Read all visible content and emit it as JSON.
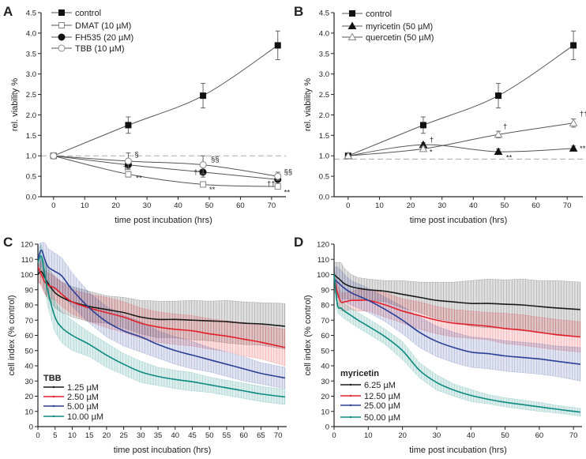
{
  "chart_data": [
    {
      "panel_label": "A",
      "type": "line",
      "xlabel": "time post incubation (hrs)",
      "ylabel": "rel. viability %",
      "xlim": [
        -4,
        74.6
      ],
      "ylim": [
        0,
        4.5
      ],
      "xticks": [
        0,
        10,
        20,
        30,
        40,
        50,
        60,
        70
      ],
      "yticks": [
        "0.0",
        "0.5",
        "1.0",
        "1.5",
        "2.0",
        "2.5",
        "3.0",
        "3.5",
        "4.0",
        "4.5"
      ],
      "grid": false,
      "legend_placement": "top-left",
      "reference_line": {
        "y": 1.0,
        "style": "dashed",
        "color": "#aaaaaa"
      },
      "series": [
        {
          "name": "control",
          "marker": "square-filled",
          "color": "#222222",
          "x": [
            0,
            24,
            48,
            72
          ],
          "y": [
            1.0,
            1.75,
            2.47,
            3.7
          ],
          "err": [
            0,
            0.2,
            0.3,
            0.35
          ]
        },
        {
          "name": "DMAT (10 µM)",
          "marker": "square-open",
          "color": "#888888",
          "x": [
            0,
            24,
            48,
            72
          ],
          "y": [
            1.0,
            0.55,
            0.3,
            0.25
          ],
          "err": [
            0,
            0.07,
            0.05,
            0.03
          ]
        },
        {
          "name": "FH535 (20 µM)",
          "marker": "circle-filled",
          "color": "#222222",
          "x": [
            0,
            24,
            48,
            72
          ],
          "y": [
            1.0,
            0.78,
            0.6,
            0.42
          ],
          "err": [
            0,
            0.1,
            0.12,
            0.05
          ]
        },
        {
          "name": "TBB (10 µM)",
          "marker": "circle-open",
          "color": "#888888",
          "x": [
            0,
            24,
            48,
            72
          ],
          "y": [
            1.0,
            0.87,
            0.78,
            0.5
          ],
          "err": [
            0,
            0.2,
            0.22,
            0.1
          ]
        }
      ],
      "annotations": [
        {
          "text": "§",
          "x": 26,
          "y": 0.98
        },
        {
          "text": "†",
          "x": 22.3,
          "y": 0.66
        },
        {
          "text": "**",
          "x": 26.5,
          "y": 0.4
        },
        {
          "text": "§§",
          "x": 50.5,
          "y": 0.86
        },
        {
          "text": "††",
          "x": 45,
          "y": 0.54
        },
        {
          "text": "**",
          "x": 50,
          "y": 0.12
        },
        {
          "text": "§§",
          "x": 74,
          "y": 0.55
        },
        {
          "text": "††",
          "x": 68.5,
          "y": 0.26
        },
        {
          "text": "**",
          "x": 74,
          "y": 0.05
        }
      ]
    },
    {
      "panel_label": "B",
      "type": "line",
      "xlabel": "time post incubation (hrs)",
      "ylabel": "rel. viability %",
      "xlim": [
        -4.5,
        75
      ],
      "ylim": [
        0,
        4.5
      ],
      "xticks": [
        0,
        10,
        20,
        30,
        40,
        50,
        60,
        70
      ],
      "yticks": [
        "0.0",
        "0.5",
        "1.0",
        "1.5",
        "2.0",
        "2.5",
        "3.0",
        "3.5",
        "4.0",
        "4.5"
      ],
      "grid": false,
      "legend_placement": "top-left",
      "reference_line": {
        "y": 0.92,
        "style": "dashed",
        "color": "#aaaaaa"
      },
      "series": [
        {
          "name": "control",
          "marker": "square-filled",
          "color": "#222222",
          "x": [
            0,
            24,
            48,
            72
          ],
          "y": [
            1.0,
            1.75,
            2.47,
            3.7
          ],
          "err": [
            0,
            0.2,
            0.3,
            0.35
          ]
        },
        {
          "name": "myricetin (50 µM)",
          "marker": "triangle-filled",
          "color": "#222222",
          "x": [
            0,
            24,
            48,
            72
          ],
          "y": [
            1.0,
            1.27,
            1.1,
            1.18
          ],
          "err": [
            0,
            0.05,
            0.07,
            0.06
          ]
        },
        {
          "name": "quercetin (50 µM)",
          "marker": "triangle-open",
          "color": "#888888",
          "x": [
            0,
            24,
            48,
            72
          ],
          "y": [
            1.0,
            1.17,
            1.52,
            1.8
          ],
          "err": [
            0,
            0.06,
            0.08,
            0.1
          ]
        }
      ],
      "annotations": [
        {
          "text": "†",
          "x": 26,
          "y": 1.33
        },
        {
          "text": "*",
          "x": 26,
          "y": 1.03
        },
        {
          "text": "†",
          "x": 49.5,
          "y": 1.66
        },
        {
          "text": "**",
          "x": 50.5,
          "y": 0.9
        },
        {
          "text": "††",
          "x": 74,
          "y": 1.97
        },
        {
          "text": "**",
          "x": 74,
          "y": 1.12
        }
      ]
    },
    {
      "panel_label": "C",
      "type": "line",
      "xlabel": "time post incubation (hrs)",
      "ylabel": "cell index (% control)",
      "xlim": [
        0,
        72.5
      ],
      "ylim": [
        0,
        120
      ],
      "xticks": [
        0,
        5,
        10,
        15,
        20,
        25,
        30,
        35,
        40,
        45,
        50,
        55,
        60,
        65,
        70
      ],
      "yticks": [
        0,
        10,
        20,
        30,
        40,
        50,
        60,
        70,
        80,
        90,
        100,
        110,
        120
      ],
      "grid": false,
      "legend_placement": "bottom-left",
      "legend_title": "TBB",
      "x": [
        0,
        1,
        2,
        3,
        5,
        7,
        10,
        15,
        20,
        25,
        30,
        35,
        40,
        45,
        50,
        55,
        60,
        65,
        72
      ],
      "series": [
        {
          "name": "1.25 µM",
          "color": "#1a1a1a",
          "y": [
            100,
            102,
            98,
            94,
            88,
            85,
            82,
            79,
            77,
            75,
            72,
            70.5,
            70.5,
            70,
            69.5,
            69,
            68,
            67.5,
            66
          ],
          "sd": [
            5,
            8,
            10,
            10,
            10,
            10,
            10,
            10,
            9,
            10,
            11,
            12,
            12,
            13,
            13,
            14,
            14,
            14,
            15
          ]
        },
        {
          "name": "2.50 µM",
          "color": "#e3202a",
          "y": [
            105,
            100,
            95,
            93,
            91,
            87,
            82,
            78,
            75,
            72,
            68,
            65.5,
            64,
            63,
            61,
            59.5,
            57.5,
            55.5,
            52
          ],
          "sd": [
            8,
            8,
            8,
            8,
            8,
            8,
            8,
            9,
            10,
            10,
            10,
            10,
            10,
            10,
            10,
            10,
            11,
            11,
            12
          ]
        },
        {
          "name": "5.00 µM",
          "color": "#2b3f96",
          "y": [
            110,
            116,
            110,
            105,
            102,
            99,
            90,
            78,
            69,
            63,
            59,
            54,
            50,
            47,
            44,
            41,
            38,
            35,
            32
          ],
          "sd": [
            10,
            10,
            11,
            12,
            12,
            12,
            11,
            10,
            10,
            10,
            10,
            9,
            9,
            9,
            8,
            8,
            8,
            7,
            7
          ]
        },
        {
          "name": "10.00 µM",
          "color": "#0b8a80",
          "y": [
            108,
            112,
            100,
            88,
            72,
            65,
            60,
            54,
            47,
            41,
            36,
            33,
            31,
            29.5,
            27.5,
            25.5,
            23.5,
            21.5,
            19.5
          ],
          "sd": [
            8,
            8,
            10,
            10,
            10,
            10,
            10,
            8,
            8,
            7,
            7,
            6,
            6,
            6,
            5,
            5,
            5,
            5,
            5
          ]
        }
      ]
    },
    {
      "panel_label": "D",
      "type": "line",
      "xlabel": "time post incubation (hrs)",
      "ylabel": "cell index (% control)",
      "xlim": [
        0,
        72.5
      ],
      "ylim": [
        0,
        120
      ],
      "xticks": [
        0,
        10,
        20,
        30,
        40,
        50,
        60,
        70
      ],
      "yticks": [
        0,
        10,
        20,
        30,
        40,
        50,
        60,
        70,
        80,
        90,
        100,
        110,
        120
      ],
      "grid": false,
      "legend_placement": "bottom-left",
      "legend_title": "myricetin",
      "x": [
        0,
        1,
        2,
        3,
        5,
        7,
        10,
        15,
        20,
        25,
        30,
        35,
        40,
        45,
        50,
        55,
        60,
        65,
        72
      ],
      "series": [
        {
          "name": "6.25 µM",
          "color": "#1a1a1a",
          "y": [
            100,
            98,
            96,
            94,
            92,
            91,
            90,
            89,
            87,
            85,
            83,
            82,
            81,
            81,
            80.5,
            80,
            79,
            78,
            77
          ],
          "sd": [
            8,
            10,
            12,
            10,
            8,
            7,
            7,
            7,
            9,
            10,
            12,
            13,
            15,
            16,
            16,
            17,
            17,
            18,
            18
          ]
        },
        {
          "name": "12.50 µM",
          "color": "#e3202a",
          "y": [
            98,
            88,
            82,
            82,
            83,
            83,
            83,
            80,
            76,
            73,
            70,
            68,
            67,
            66,
            64.5,
            63.5,
            62,
            60.5,
            59
          ],
          "sd": [
            6,
            6,
            6,
            6,
            6,
            7,
            7,
            8,
            8,
            9,
            9,
            9,
            9,
            9,
            10,
            10,
            10,
            10,
            10
          ]
        },
        {
          "name": "25.00 µM",
          "color": "#2b3f96",
          "y": [
            97,
            95,
            93,
            91,
            88,
            86,
            83,
            77,
            70,
            62,
            56,
            52,
            49,
            48,
            46.5,
            45.5,
            44.5,
            43,
            41
          ],
          "sd": [
            8,
            10,
            10,
            9,
            8,
            8,
            8,
            8,
            9,
            10,
            10,
            10,
            10,
            10,
            10,
            10,
            10,
            10,
            11
          ]
        },
        {
          "name": "50.00 µM",
          "color": "#0b8a80",
          "y": [
            100,
            80,
            78,
            76,
            73,
            70,
            66,
            59,
            50,
            37,
            29,
            24,
            20.5,
            18,
            16,
            14.5,
            13,
            11.5,
            9.5
          ],
          "sd": [
            5,
            5,
            5,
            5,
            5,
            5,
            5,
            5,
            6,
            5,
            5,
            4,
            4,
            3,
            3,
            3,
            3,
            2.5,
            2.5
          ]
        }
      ]
    }
  ]
}
